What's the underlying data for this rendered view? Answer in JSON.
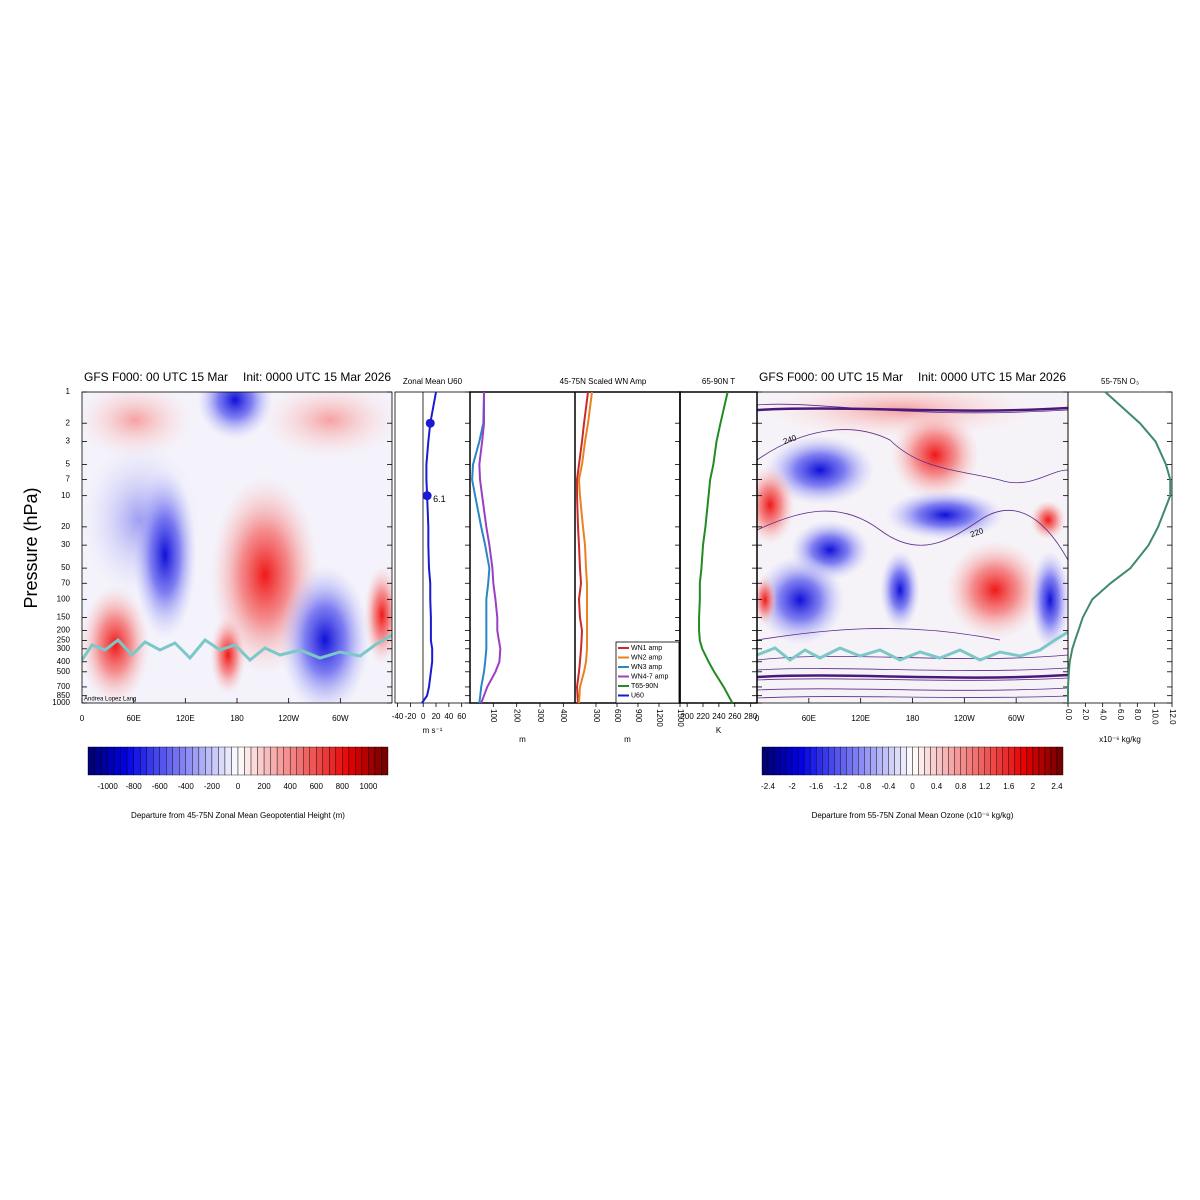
{
  "chart_data": [
    {
      "type": "contour",
      "title": "GFS F000: 00 UTC 15 Mar",
      "subtitle": "Init: 0000 UTC 15 Mar 2026",
      "ylabel": "Pressure (hPa)",
      "ylim": [
        1,
        1000
      ],
      "log_y": true,
      "yticks": [
        1,
        2,
        3,
        5,
        7,
        10,
        20,
        30,
        50,
        70,
        100,
        150,
        200,
        250,
        300,
        400,
        500,
        700,
        850,
        1000
      ],
      "xlim": [
        0,
        360
      ],
      "xticks": [
        0,
        {
          "value": 60,
          "label": "60E"
        },
        {
          "value": 120,
          "label": "120E"
        },
        180,
        {
          "value": 240,
          "label": "120W"
        },
        {
          "value": 300,
          "label": "60W"
        }
      ],
      "colorbar": {
        "label": "Departure from 45-75N Zonal Mean Geopotential Height (m)",
        "lim": [
          -1150,
          1150
        ],
        "interval": 50,
        "ticks": [
          -1000,
          -800,
          -600,
          -400,
          -200,
          0,
          200,
          400,
          600,
          800,
          1000
        ]
      },
      "credit": "Andrea Lopez Lang"
    },
    {
      "type": "profile",
      "title": "Zonal Mean U60",
      "xlabel": "m s⁻¹",
      "xlim": [
        -44,
        73
      ],
      "xticks": [
        -40,
        -20,
        0,
        20,
        40,
        60
      ],
      "y": [
        1,
        2,
        3,
        5,
        7,
        10,
        20,
        30,
        50,
        70,
        100,
        150,
        200,
        250,
        300,
        400,
        500,
        700,
        850,
        1000
      ],
      "series": [
        {
          "name": "U60",
          "color": "#1a1ad0",
          "values": [
            20,
            11,
            8,
            5,
            5,
            6.1,
            8,
            8,
            9,
            11,
            11,
            12,
            12,
            12,
            14,
            14,
            12,
            9,
            6,
            -2
          ],
          "marker_levels": [
            2,
            10
          ],
          "labeled_levels": [
            10
          ]
        }
      ]
    },
    {
      "type": "profile",
      "title": "45-75N Scaled WN Amp",
      "xlabel": "m",
      "x2label": "m",
      "xlim": [
        0,
        450
      ],
      "xticks": [
        100,
        200,
        300,
        400
      ],
      "x2lim": [
        0,
        1500
      ],
      "x2ticks": [
        300,
        600,
        900,
        1200,
        1500
      ],
      "tick_rotation": 90,
      "legend": "lower right",
      "y": [
        1,
        2,
        3,
        5,
        7,
        10,
        20,
        30,
        50,
        70,
        100,
        150,
        200,
        250,
        300,
        400,
        500,
        700,
        850,
        1000
      ],
      "series": [
        {
          "name": "WN1 amp",
          "color": "#cc2a2a",
          "axis": "x2",
          "values": [
            186,
            129,
            100,
            57,
            29,
            29,
            43,
            57,
            71,
            86,
            57,
            71,
            100,
            93,
            86,
            71,
            57,
            29,
            36,
            43
          ]
        },
        {
          "name": "WN2 amp",
          "color": "#e8821e",
          "axis": "x2",
          "values": [
            243,
            186,
            143,
            100,
            57,
            71,
            114,
            143,
            157,
            171,
            171,
            171,
            171,
            171,
            171,
            157,
            129,
            71,
            64,
            57
          ]
        },
        {
          "name": "WN3 amp",
          "color": "#2a86c4",
          "values": [
            60,
            57,
            40,
            13,
            9,
            22,
            48,
            65,
            83,
            78,
            70,
            70,
            70,
            70,
            70,
            65,
            60,
            48,
            44,
            40
          ]
        },
        {
          "name": "WN4-7 amp",
          "color": "#9a3fc4",
          "values": [
            60,
            60,
            52,
            40,
            43,
            52,
            70,
            83,
            96,
            100,
            109,
            117,
            117,
            124,
            130,
            126,
            109,
            74,
            60,
            48
          ]
        }
      ]
    },
    {
      "type": "profile",
      "title": "65-90N T",
      "xlabel": "K",
      "xlim": [
        191,
        288
      ],
      "xticks": [
        200,
        220,
        240,
        260,
        280
      ],
      "y": [
        1,
        2,
        3,
        5,
        7,
        10,
        20,
        30,
        50,
        70,
        100,
        150,
        200,
        250,
        300,
        400,
        500,
        700,
        850,
        1000
      ],
      "series": [
        {
          "name": "T65-90N",
          "color": "#228b22",
          "values": [
            251,
            242,
            237,
            233,
            229,
            227,
            223,
            220,
            218,
            216,
            216,
            215,
            215,
            216,
            219,
            227,
            234,
            246,
            252,
            257
          ]
        }
      ]
    },
    {
      "type": "contour",
      "title": "GFS F000: 00 UTC 15 Mar",
      "subtitle": "Init: 0000 UTC 15 Mar 2026",
      "xlim": [
        0,
        360
      ],
      "xticks": [
        0,
        {
          "value": 60,
          "label": "60E"
        },
        {
          "value": 120,
          "label": "120E"
        },
        180,
        {
          "value": 240,
          "label": "120W"
        },
        {
          "value": 300,
          "label": "60W"
        }
      ],
      "contour_labels": [
        240,
        220
      ],
      "colorbar": {
        "label": "Departure from 55-75N Zonal Mean Ozone (x10⁻⁶ kg/kg)",
        "lim": [
          -2.5,
          2.5
        ],
        "interval": 0.1,
        "ticks": [
          -2.4,
          -2,
          -1.6,
          -1.2,
          -0.8,
          -0.4,
          0,
          0.4,
          0.8,
          1.2,
          1.6,
          2,
          2.4
        ]
      }
    },
    {
      "type": "profile",
      "title": "55-75N O₃",
      "xlabel": "x10⁻⁶ kg/kg",
      "xlim": [
        0,
        12
      ],
      "tick_rotation": 90,
      "xticks": [
        {
          "value": 0,
          "label": "0.0"
        },
        {
          "value": 2,
          "label": "2.0"
        },
        {
          "value": 4,
          "label": "4.0"
        },
        {
          "value": 6,
          "label": "6.0"
        },
        {
          "value": 8,
          "label": "8.0"
        },
        {
          "value": 10,
          "label": "10.0"
        },
        {
          "value": 12,
          "label": "12.0"
        }
      ],
      "y": [
        1,
        2,
        3,
        5,
        7,
        10,
        20,
        30,
        50,
        70,
        100,
        150,
        200,
        250,
        300,
        400,
        500,
        700,
        850,
        1000
      ],
      "series": [
        {
          "color": "#3f8a6a",
          "values": [
            4.3,
            8.3,
            10.1,
            11.3,
            11.8,
            11.8,
            10.4,
            9.3,
            7.2,
            4.9,
            2.8,
            1.7,
            1.2,
            0.8,
            0.5,
            0.2,
            0.1,
            0,
            0,
            0
          ]
        }
      ]
    }
  ]
}
